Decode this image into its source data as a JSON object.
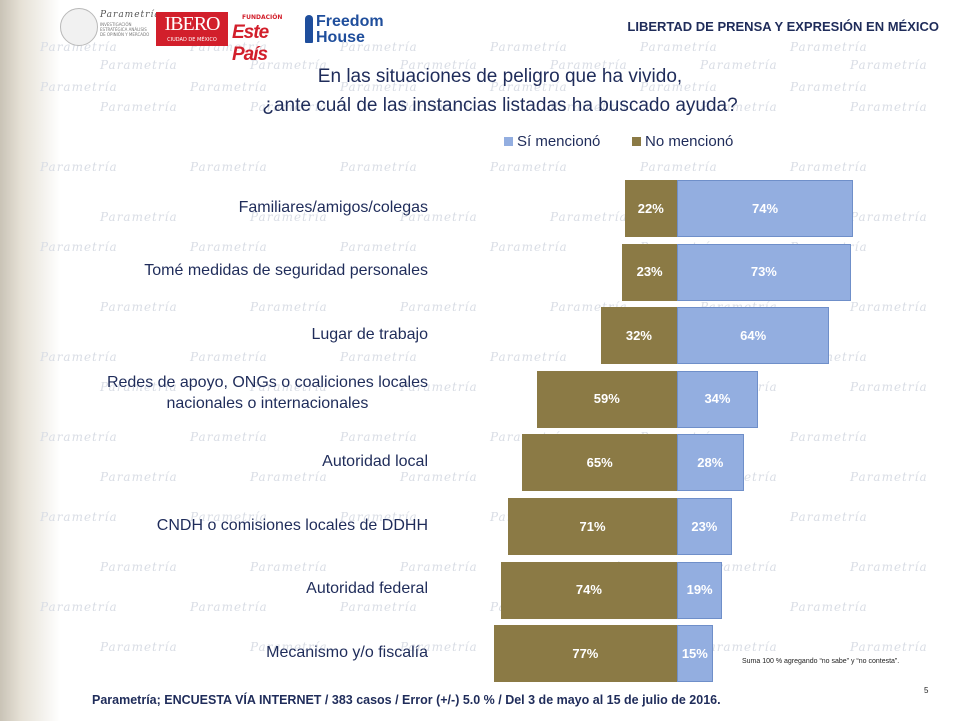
{
  "header": {
    "title": "LIBERTAD DE PRENSA Y EXPRESIÓN EN MÉXICO",
    "logos": {
      "parametria": "Parametría",
      "parametria_sub": "INVESTIGACIÓN ESTRATÉGICA ANÁLISIS DE OPINIÓN Y MERCADO",
      "ibero": "IBERO",
      "ibero_sub": "CIUDAD DE MÉXICO",
      "fundacion": "FUNDACIÓN",
      "estepais": "Este País",
      "freedom_line1": "Freedom",
      "freedom_line2": "House"
    }
  },
  "question": {
    "line1": "En las situaciones de peligro que ha vivido,",
    "line2": "¿ante cuál de las instancias listadas ha buscado ayuda?"
  },
  "legend": {
    "si": "Sí mencionó",
    "no": "No mencionó",
    "si_color": "#93aee0",
    "no_color": "#8b7a45"
  },
  "chart_data": {
    "type": "bar",
    "orientation": "horizontal-diverging",
    "categories": [
      "Familiares/amigos/colegas",
      "Tomé medidas de seguridad personales",
      "Lugar de trabajo",
      "Redes de apoyo, ONGs o coaliciones locales nacionales o internacionales",
      "Autoridad local",
      "CNDH o comisiones locales de DDHH",
      "Autoridad federal",
      "Mecanismo y/o fiscalía"
    ],
    "category_lines": [
      [
        "Familiares/amigos/colegas"
      ],
      [
        "Tomé medidas de seguridad personales"
      ],
      [
        "Lugar de trabajo"
      ],
      [
        "Redes de apoyo, ONGs o coaliciones locales",
        "nacionales o internacionales"
      ],
      [
        "Autoridad local"
      ],
      [
        "CNDH o comisiones locales de DDHH"
      ],
      [
        "Autoridad federal"
      ],
      [
        "Mecanismo y/o fiscalía"
      ]
    ],
    "series": [
      {
        "name": "Sí mencionó",
        "values": [
          74,
          73,
          64,
          34,
          28,
          23,
          19,
          15
        ]
      },
      {
        "name": "No mencionó",
        "values": [
          22,
          23,
          32,
          59,
          65,
          71,
          74,
          77
        ]
      }
    ],
    "value_suffix": "%",
    "xlim": [
      -100,
      100
    ],
    "legend_position": "top"
  },
  "note": "Suma 100 % agregando “no sabe” y “no contesta”.",
  "page_number": "5",
  "footer": "Parametría; ENCUESTA VÍA INTERNET /  383 casos / Error (+/-) 5.0 % / Del 3 de mayo al 15 de julio de 2016."
}
